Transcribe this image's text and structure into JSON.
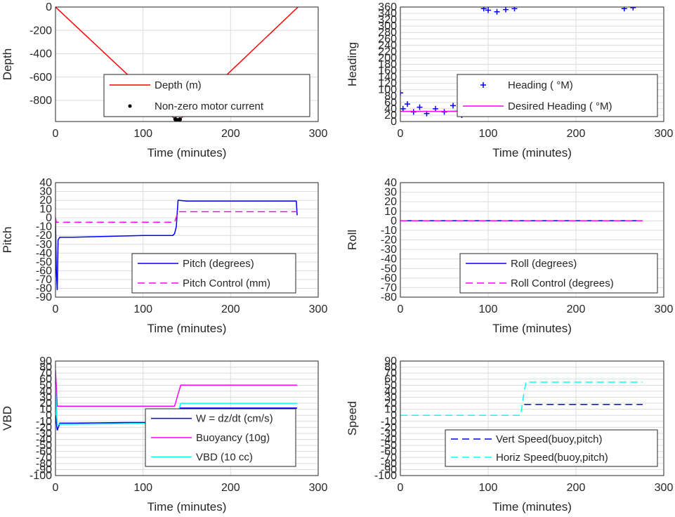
{
  "chart_data": [
    {
      "type": "line",
      "xlabel": "Time (minutes)",
      "ylabel": "Depth",
      "xlim": [
        0,
        300
      ],
      "ylim": [
        -980,
        0
      ],
      "xticks": [
        0,
        100,
        200,
        300
      ],
      "yticks": [
        0,
        -200,
        -400,
        -600,
        -800
      ],
      "grid": true,
      "legend_position": "bottom-center",
      "series": [
        {
          "name": "Depth (m)",
          "style": "line",
          "color": "#ff0000",
          "x": [
            0,
            138,
            141,
            277
          ],
          "y": [
            0,
            -970,
            -970,
            0
          ]
        },
        {
          "name": "Non-zero motor current",
          "style": "dots",
          "color": "#000000",
          "x": [
            137,
            138,
            139,
            140,
            141,
            142
          ],
          "y": [
            -960,
            -968,
            -970,
            -970,
            -968,
            -962
          ]
        }
      ]
    },
    {
      "type": "scatter",
      "xlabel": "Time (minutes)",
      "ylabel": "Heading",
      "xlim": [
        0,
        300
      ],
      "ylim": [
        0,
        360
      ],
      "xticks": [
        0,
        100,
        200,
        300
      ],
      "yticks": [
        0,
        20,
        40,
        60,
        80,
        100,
        120,
        140,
        160,
        180,
        200,
        220,
        240,
        260,
        280,
        300,
        320,
        340,
        360
      ],
      "grid": true,
      "legend_position": "bottom-right",
      "series": [
        {
          "name": "Heading ( °M)",
          "style": "plus",
          "color": "#0000ff",
          "x": [
            0,
            3,
            8,
            15,
            22,
            30,
            40,
            50,
            60,
            70,
            80,
            90,
            95,
            100,
            110,
            120,
            130,
            140,
            150,
            160,
            170,
            180,
            190,
            200,
            210,
            220,
            230,
            240,
            250,
            255,
            260,
            265,
            270,
            275
          ],
          "y": [
            90,
            40,
            55,
            30,
            45,
            25,
            40,
            30,
            50,
            20,
            45,
            35,
            355,
            350,
            345,
            352,
            355,
            40,
            30,
            50,
            25,
            45,
            35,
            60,
            40,
            30,
            55,
            35,
            60,
            355,
            80,
            358,
            45,
            40
          ]
        },
        {
          "name": "Desired Heading ( °M)",
          "style": "line",
          "color": "#ff00ff",
          "x": [
            0,
            50,
            100,
            140,
            200,
            250,
            277
          ],
          "y": [
            32,
            32,
            34,
            35,
            35,
            33,
            33
          ]
        }
      ]
    },
    {
      "type": "line",
      "xlabel": "Time (minutes)",
      "ylabel": "Pitch",
      "xlim": [
        0,
        300
      ],
      "ylim": [
        -90,
        40
      ],
      "xticks": [
        0,
        100,
        200,
        300
      ],
      "yticks": [
        40,
        30,
        20,
        10,
        0,
        -10,
        -20,
        -30,
        -40,
        -50,
        -60,
        -70,
        -80,
        -90
      ],
      "grid": true,
      "legend_position": "bottom-right",
      "series": [
        {
          "name": "Pitch (degrees)",
          "style": "line",
          "color": "#0000ff",
          "x": [
            0,
            1,
            2,
            3,
            5,
            20,
            60,
            100,
            134,
            136,
            138,
            140,
            150,
            200,
            250,
            275,
            276
          ],
          "y": [
            0,
            -60,
            -82,
            -25,
            -22,
            -22,
            -21,
            -20,
            -20,
            -18,
            -10,
            20,
            19,
            19,
            19,
            19,
            3
          ]
        },
        {
          "name": "Pitch Control (mm)",
          "style": "dashed",
          "color": "#ff00ff",
          "x": [
            0,
            1,
            3,
            10,
            136,
            140,
            276
          ],
          "y": [
            0,
            -5,
            -5,
            -5,
            -5,
            7,
            7
          ]
        }
      ]
    },
    {
      "type": "line",
      "xlabel": "Time (minutes)",
      "ylabel": "Roll",
      "xlim": [
        0,
        300
      ],
      "ylim": [
        -80,
        40
      ],
      "xticks": [
        0,
        100,
        200,
        300
      ],
      "yticks": [
        40,
        30,
        20,
        10,
        0,
        -10,
        -20,
        -30,
        -40,
        -50,
        -60,
        -70,
        -80
      ],
      "grid": true,
      "legend_position": "bottom-right",
      "series": [
        {
          "name": "Roll (degrees)",
          "style": "line",
          "color": "#0000ff",
          "x": [
            0,
            276
          ],
          "y": [
            0,
            0
          ]
        },
        {
          "name": "Roll Control (degrees)",
          "style": "dashed",
          "color": "#ff00ff",
          "x": [
            0,
            276
          ],
          "y": [
            0,
            0
          ]
        }
      ]
    },
    {
      "type": "line",
      "xlabel": "Time (minutes)",
      "ylabel": "VBD",
      "xlim": [
        0,
        300
      ],
      "ylim": [
        -100,
        90
      ],
      "xticks": [
        0,
        100,
        200,
        300
      ],
      "yticks": [
        90,
        80,
        70,
        60,
        50,
        40,
        30,
        20,
        10,
        0,
        -10,
        -20,
        -30,
        -40,
        -50,
        -60,
        -70,
        -80,
        -90,
        -100
      ],
      "grid": true,
      "legend_position": "bottom-right",
      "series": [
        {
          "name": "W = dz/dt (cm/s)",
          "style": "line",
          "color": "#0000ff",
          "x": [
            0,
            2,
            5,
            20,
            80,
            136,
            139,
            142,
            200,
            276
          ],
          "y": [
            0,
            -25,
            -13,
            -13,
            -12,
            -12,
            0,
            12,
            12,
            12
          ]
        },
        {
          "name": "Buoyancy (10g)",
          "style": "line",
          "color": "#ff00ff",
          "x": [
            0,
            2,
            5,
            136,
            140,
            143,
            276
          ],
          "y": [
            75,
            15,
            15,
            15,
            35,
            50,
            50
          ]
        },
        {
          "name": "VBD (10 cc)",
          "style": "line",
          "color": "#00ffff",
          "x": [
            0,
            2,
            5,
            136,
            140,
            143,
            276
          ],
          "y": [
            50,
            -15,
            -15,
            -13,
            5,
            20,
            20
          ]
        }
      ]
    },
    {
      "type": "line",
      "xlabel": "Time (minutes)",
      "ylabel": "Speed",
      "xlim": [
        0,
        300
      ],
      "ylim": [
        -100,
        90
      ],
      "xticks": [
        0,
        100,
        200,
        300
      ],
      "yticks": [
        90,
        80,
        70,
        60,
        50,
        40,
        30,
        20,
        10,
        0,
        -10,
        -20,
        -30,
        -40,
        -50,
        -60,
        -70,
        -80,
        -90,
        -100
      ],
      "grid": true,
      "legend_position": "bottom-right",
      "series": [
        {
          "name": "Vert Speed(buoy,pitch)",
          "style": "dashed",
          "color": "#0000ff",
          "x": [
            141,
            145,
            276
          ],
          "y": [
            18,
            18,
            18
          ]
        },
        {
          "name": "Horiz Speed(buoy,pitch)",
          "style": "dashed",
          "color": "#00ffff",
          "x": [
            0,
            137,
            140,
            143,
            276
          ],
          "y": [
            0,
            0,
            30,
            55,
            55
          ]
        }
      ]
    }
  ]
}
